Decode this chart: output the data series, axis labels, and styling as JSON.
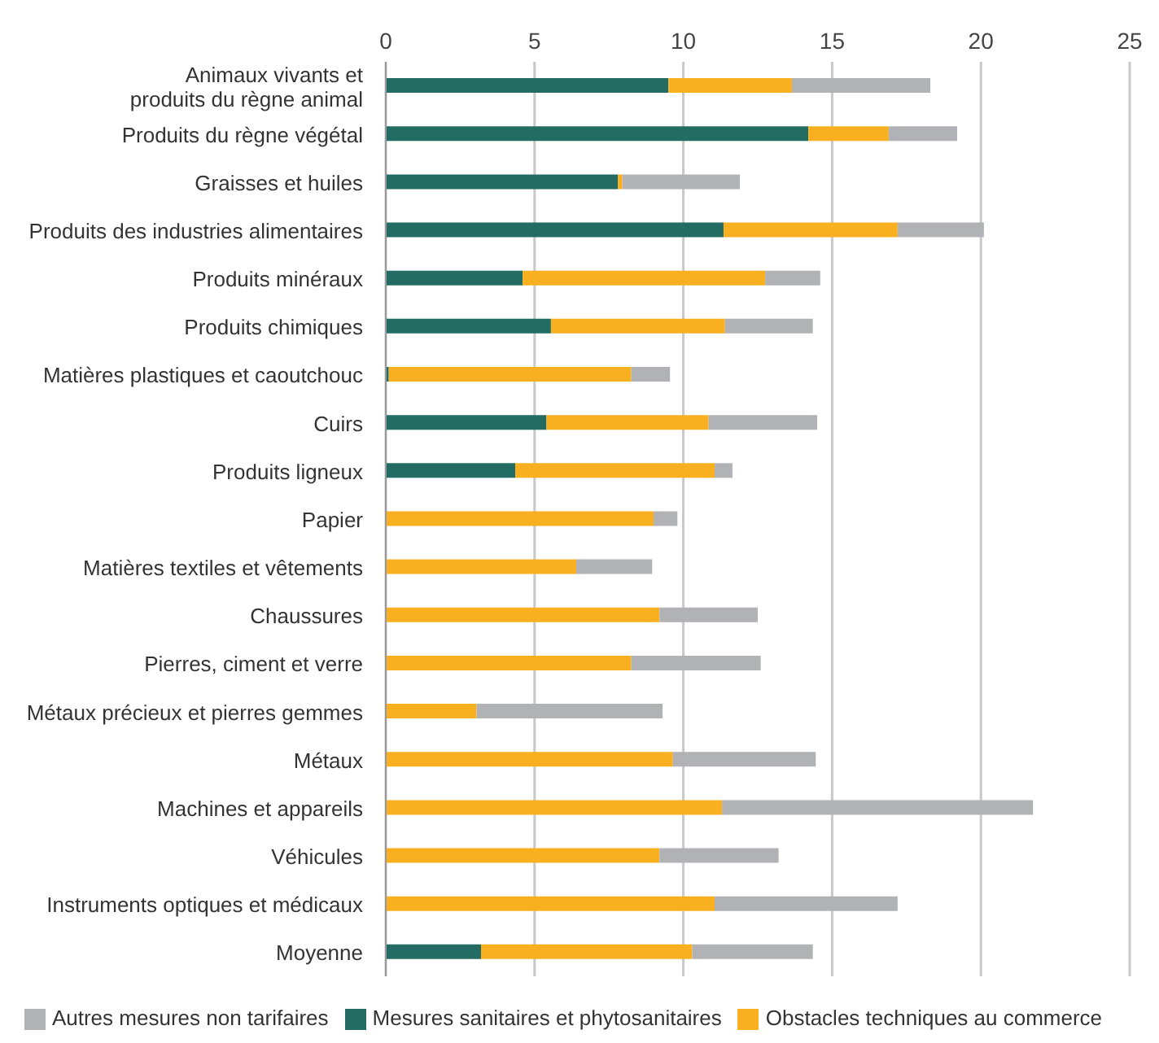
{
  "chart_data": {
    "type": "bar",
    "orientation": "horizontal",
    "stacked": true,
    "categories": [
      "Animaux vivants et produits du règne animal",
      "Produits du règne végétal",
      "Graisses et huiles",
      "Produits des industries alimentaires",
      "Produits minéraux",
      "Produits chimiques",
      "Matières plastiques et caoutchouc",
      "Cuirs",
      "Produits ligneux",
      "Papier",
      "Matières textiles et vêtements",
      "Chaussures",
      "Pierres, ciment et verre",
      "Métaux précieux et pierres gemmes",
      "Métaux ",
      "Machines et appareils",
      "Véhicules",
      "Instruments optiques et médicaux",
      "Moyenne"
    ],
    "series": [
      {
        "name": "Mesures sanitaires et phytosanitaires",
        "color": "#236c64",
        "values": [
          9.5,
          14.2,
          7.8,
          11.35,
          4.6,
          5.55,
          0.1,
          5.4,
          4.35,
          0,
          0,
          0,
          0,
          0,
          0,
          0,
          0,
          0,
          3.2
        ]
      },
      {
        "name": "Obstacles techniques au commerce",
        "color": "#f9b020",
        "values": [
          4.15,
          2.7,
          0.15,
          5.85,
          8.15,
          5.85,
          8.15,
          5.45,
          6.7,
          9.0,
          6.4,
          9.2,
          8.25,
          3.05,
          9.65,
          11.3,
          9.2,
          11.05,
          7.1
        ]
      },
      {
        "name": "Autres mesures non tarifaires",
        "color": "#b1b2b5",
        "values": [
          4.65,
          2.3,
          3.95,
          2.9,
          1.85,
          2.95,
          1.3,
          3.65,
          0.6,
          0.8,
          2.55,
          3.3,
          4.35,
          6.25,
          4.8,
          10.45,
          4.0,
          6.15,
          4.05
        ]
      }
    ],
    "xlim": [
      0,
      25
    ],
    "xticks": [
      0,
      5,
      10,
      15,
      20,
      25
    ],
    "grid": "x",
    "legend": "bottom"
  }
}
